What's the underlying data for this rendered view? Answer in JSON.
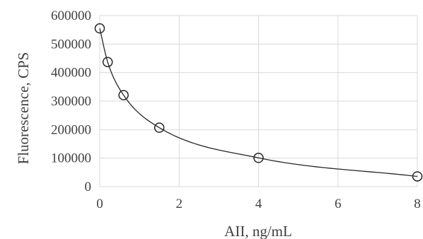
{
  "chart_data": {
    "type": "scatter",
    "xlabel": "AII, ng/mL",
    "ylabel": "Fluorescence, CPS",
    "x_ticks": [
      0,
      2,
      4,
      6,
      8
    ],
    "x_tick_labels": [
      "0",
      "2",
      "4",
      "6",
      "8"
    ],
    "y_ticks": [
      0,
      100000,
      200000,
      300000,
      400000,
      500000,
      600000
    ],
    "y_tick_labels": [
      "0",
      "100000",
      "200000",
      "300000",
      "400000",
      "500000",
      "600000"
    ],
    "xlim": [
      0,
      8
    ],
    "ylim": [
      0,
      600000
    ],
    "grid": true,
    "legend": "none",
    "marker": "open-circle",
    "trendline": "fitted curve",
    "series": [
      {
        "x": [
          0,
          0.2,
          0.6,
          1.5,
          4,
          8
        ],
        "y": [
          555000,
          437000,
          321000,
          207000,
          101000,
          36000
        ]
      }
    ]
  }
}
